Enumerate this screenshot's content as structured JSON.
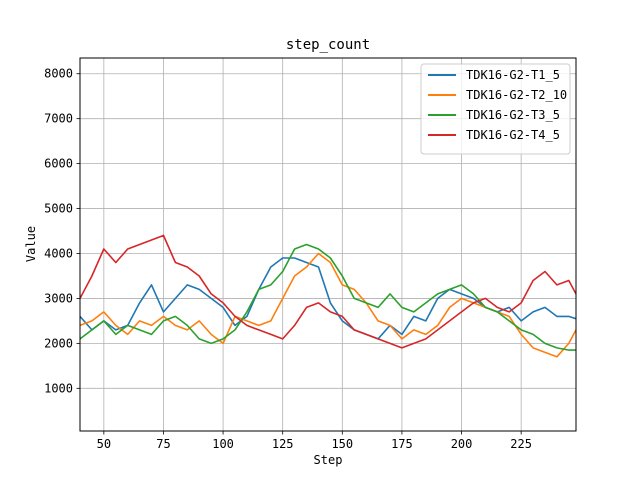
{
  "chart_data": {
    "type": "line",
    "title": "step_count",
    "xlabel": "Step",
    "ylabel": "Value",
    "xlim": [
      40,
      248
    ],
    "ylim": [
      50,
      8350
    ],
    "xticks": [
      50,
      75,
      100,
      125,
      150,
      175,
      200,
      225
    ],
    "yticks": [
      1000,
      2000,
      3000,
      4000,
      5000,
      6000,
      7000,
      8000
    ],
    "grid": true,
    "legend_position": "top-right",
    "x": [
      40,
      45,
      50,
      55,
      60,
      65,
      70,
      75,
      80,
      85,
      90,
      95,
      100,
      105,
      110,
      115,
      120,
      125,
      130,
      135,
      140,
      145,
      150,
      155,
      160,
      165,
      170,
      175,
      180,
      185,
      190,
      195,
      200,
      205,
      210,
      215,
      220,
      225,
      230,
      235,
      240,
      245,
      248
    ],
    "series": [
      {
        "name": "TDK16-G2-T1_5",
        "color": "#1f77b4",
        "values": [
          2600,
          2300,
          2500,
          2300,
          2400,
          2900,
          3300,
          2700,
          3000,
          3300,
          3200,
          3000,
          2800,
          2400,
          2600,
          3200,
          3700,
          3900,
          3900,
          3800,
          3700,
          2900,
          2500,
          2300,
          2200,
          2100,
          2400,
          2200,
          2600,
          2500,
          3000,
          3200,
          3100,
          3000,
          2800,
          2700,
          2800,
          2500,
          2700,
          2800,
          2600,
          2600,
          2550
        ]
      },
      {
        "name": "TDK16-G2-T2_10",
        "color": "#ff7f0e",
        "values": [
          2400,
          2500,
          2700,
          2400,
          2200,
          2500,
          2400,
          2600,
          2400,
          2300,
          2500,
          2200,
          2000,
          2600,
          2500,
          2400,
          2500,
          3000,
          3500,
          3700,
          4000,
          3800,
          3300,
          3200,
          2900,
          2500,
          2400,
          2100,
          2300,
          2200,
          2400,
          2800,
          3000,
          2900,
          2800,
          2700,
          2600,
          2200,
          1900,
          1800,
          1700,
          2000,
          2300
        ]
      },
      {
        "name": "TDK16-G2-T3_5",
        "color": "#2ca02c",
        "values": [
          2100,
          2300,
          2500,
          2200,
          2400,
          2300,
          2200,
          2500,
          2600,
          2400,
          2100,
          2000,
          2100,
          2300,
          2700,
          3200,
          3300,
          3600,
          4100,
          4200,
          4100,
          3900,
          3500,
          3000,
          2900,
          2800,
          3100,
          2800,
          2700,
          2900,
          3100,
          3200,
          3300,
          3100,
          2800,
          2700,
          2500,
          2300,
          2200,
          2000,
          1900,
          1850,
          1850
        ]
      },
      {
        "name": "TDK16-G2-T4_5",
        "color": "#d62728",
        "values": [
          3000,
          3500,
          4100,
          3800,
          4100,
          4200,
          4300,
          4400,
          3800,
          3700,
          3500,
          3100,
          2900,
          2600,
          2400,
          2300,
          2200,
          2100,
          2400,
          2800,
          2900,
          2700,
          2600,
          2300,
          2200,
          2100,
          2000,
          1900,
          2000,
          2100,
          2300,
          2500,
          2700,
          2900,
          3000,
          2800,
          2700,
          2900,
          3400,
          3600,
          3300,
          3400,
          3100
        ]
      }
    ]
  }
}
